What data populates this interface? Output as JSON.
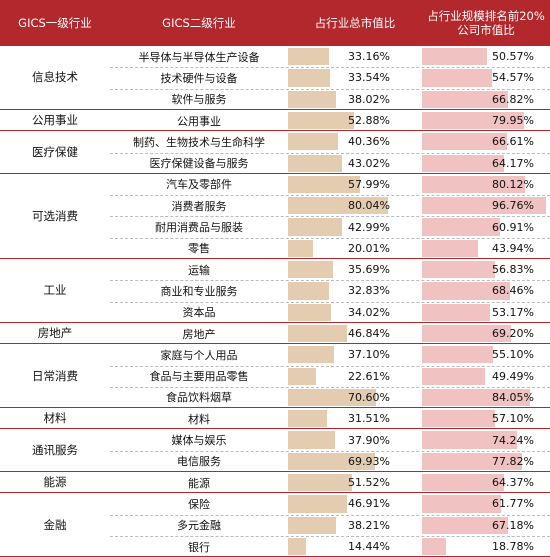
{
  "header": {
    "col1": "GICS一级行业",
    "col2": "GICS二级行业",
    "col3": "占行业总市值比",
    "col4_line1": "占行业规模排名前20%",
    "col4_line2": "公司市值比"
  },
  "groups": [
    {
      "name": "信息技术",
      "rows": [
        {
          "sub": "半导体与半导体生产设备",
          "a": "33.16%",
          "b": "50.57%"
        },
        {
          "sub": "技术硬件与设备",
          "a": "33.54%",
          "b": "54.57%"
        },
        {
          "sub": "软件与服务",
          "a": "38.02%",
          "b": "66.82%"
        }
      ]
    },
    {
      "name": "公用事业",
      "rows": [
        {
          "sub": "公用事业",
          "a": "52.88%",
          "b": "79.95%"
        }
      ]
    },
    {
      "name": "医疗保健",
      "rows": [
        {
          "sub": "制药、生物技术与生命科学",
          "a": "40.36%",
          "b": "66.61%"
        },
        {
          "sub": "医疗保健设备与服务",
          "a": "43.02%",
          "b": "64.17%"
        }
      ]
    },
    {
      "name": "可选消费",
      "rows": [
        {
          "sub": "汽车及零部件",
          "a": "57.99%",
          "b": "80.12%"
        },
        {
          "sub": "消费者服务",
          "a": "80.04%",
          "b": "96.76%"
        },
        {
          "sub": "耐用消费品与服装",
          "a": "42.99%",
          "b": "60.91%"
        },
        {
          "sub": "零售",
          "a": "20.01%",
          "b": "43.94%"
        }
      ]
    },
    {
      "name": "工业",
      "rows": [
        {
          "sub": "运输",
          "a": "35.69%",
          "b": "56.83%"
        },
        {
          "sub": "商业和专业服务",
          "a": "32.83%",
          "b": "68.46%"
        },
        {
          "sub": "资本品",
          "a": "34.02%",
          "b": "53.17%"
        }
      ]
    },
    {
      "name": "房地产",
      "rows": [
        {
          "sub": "房地产",
          "a": "46.84%",
          "b": "69.20%"
        }
      ]
    },
    {
      "name": "日常消费",
      "rows": [
        {
          "sub": "家庭与个人用品",
          "a": "37.10%",
          "b": "55.10%"
        },
        {
          "sub": "食品与主要用品零售",
          "a": "22.61%",
          "b": "49.49%"
        },
        {
          "sub": "食品饮料烟草",
          "a": "70.60%",
          "b": "84.05%"
        }
      ]
    },
    {
      "name": "材料",
      "rows": [
        {
          "sub": "材料",
          "a": "31.51%",
          "b": "57.10%"
        }
      ]
    },
    {
      "name": "通讯服务",
      "rows": [
        {
          "sub": "媒体与娱乐",
          "a": "37.90%",
          "b": "74.24%"
        },
        {
          "sub": "电信服务",
          "a": "69.93%",
          "b": "77.82%"
        }
      ]
    },
    {
      "name": "能源",
      "rows": [
        {
          "sub": "能源",
          "a": "51.52%",
          "b": "64.37%"
        }
      ]
    },
    {
      "name": "金融",
      "rows": [
        {
          "sub": "保险",
          "a": "46.91%",
          "b": "61.77%"
        },
        {
          "sub": "多元金融",
          "a": "38.21%",
          "b": "67.18%"
        },
        {
          "sub": "银行",
          "a": "14.44%",
          "b": "18.78%"
        }
      ]
    }
  ]
}
